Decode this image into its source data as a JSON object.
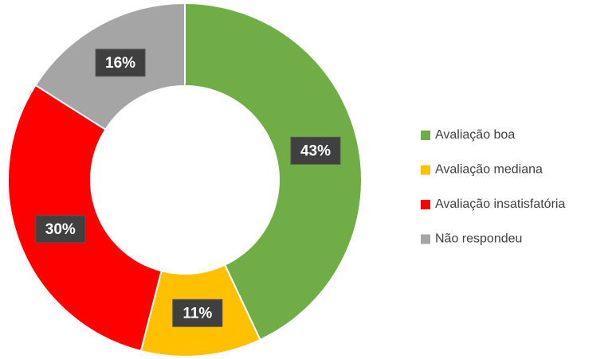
{
  "chart_data": {
    "type": "donut",
    "categories": [
      "Avaliação boa",
      "Avaliação mediana",
      "Avaliação insatisfatória",
      "Não respondeu"
    ],
    "values": [
      43,
      11,
      30,
      16
    ],
    "value_labels": [
      "43%",
      "11%",
      "30%",
      "16%"
    ],
    "colors": [
      "#70ad47",
      "#ffc000",
      "#ff0000",
      "#a5a5a5"
    ],
    "legend": "right"
  }
}
